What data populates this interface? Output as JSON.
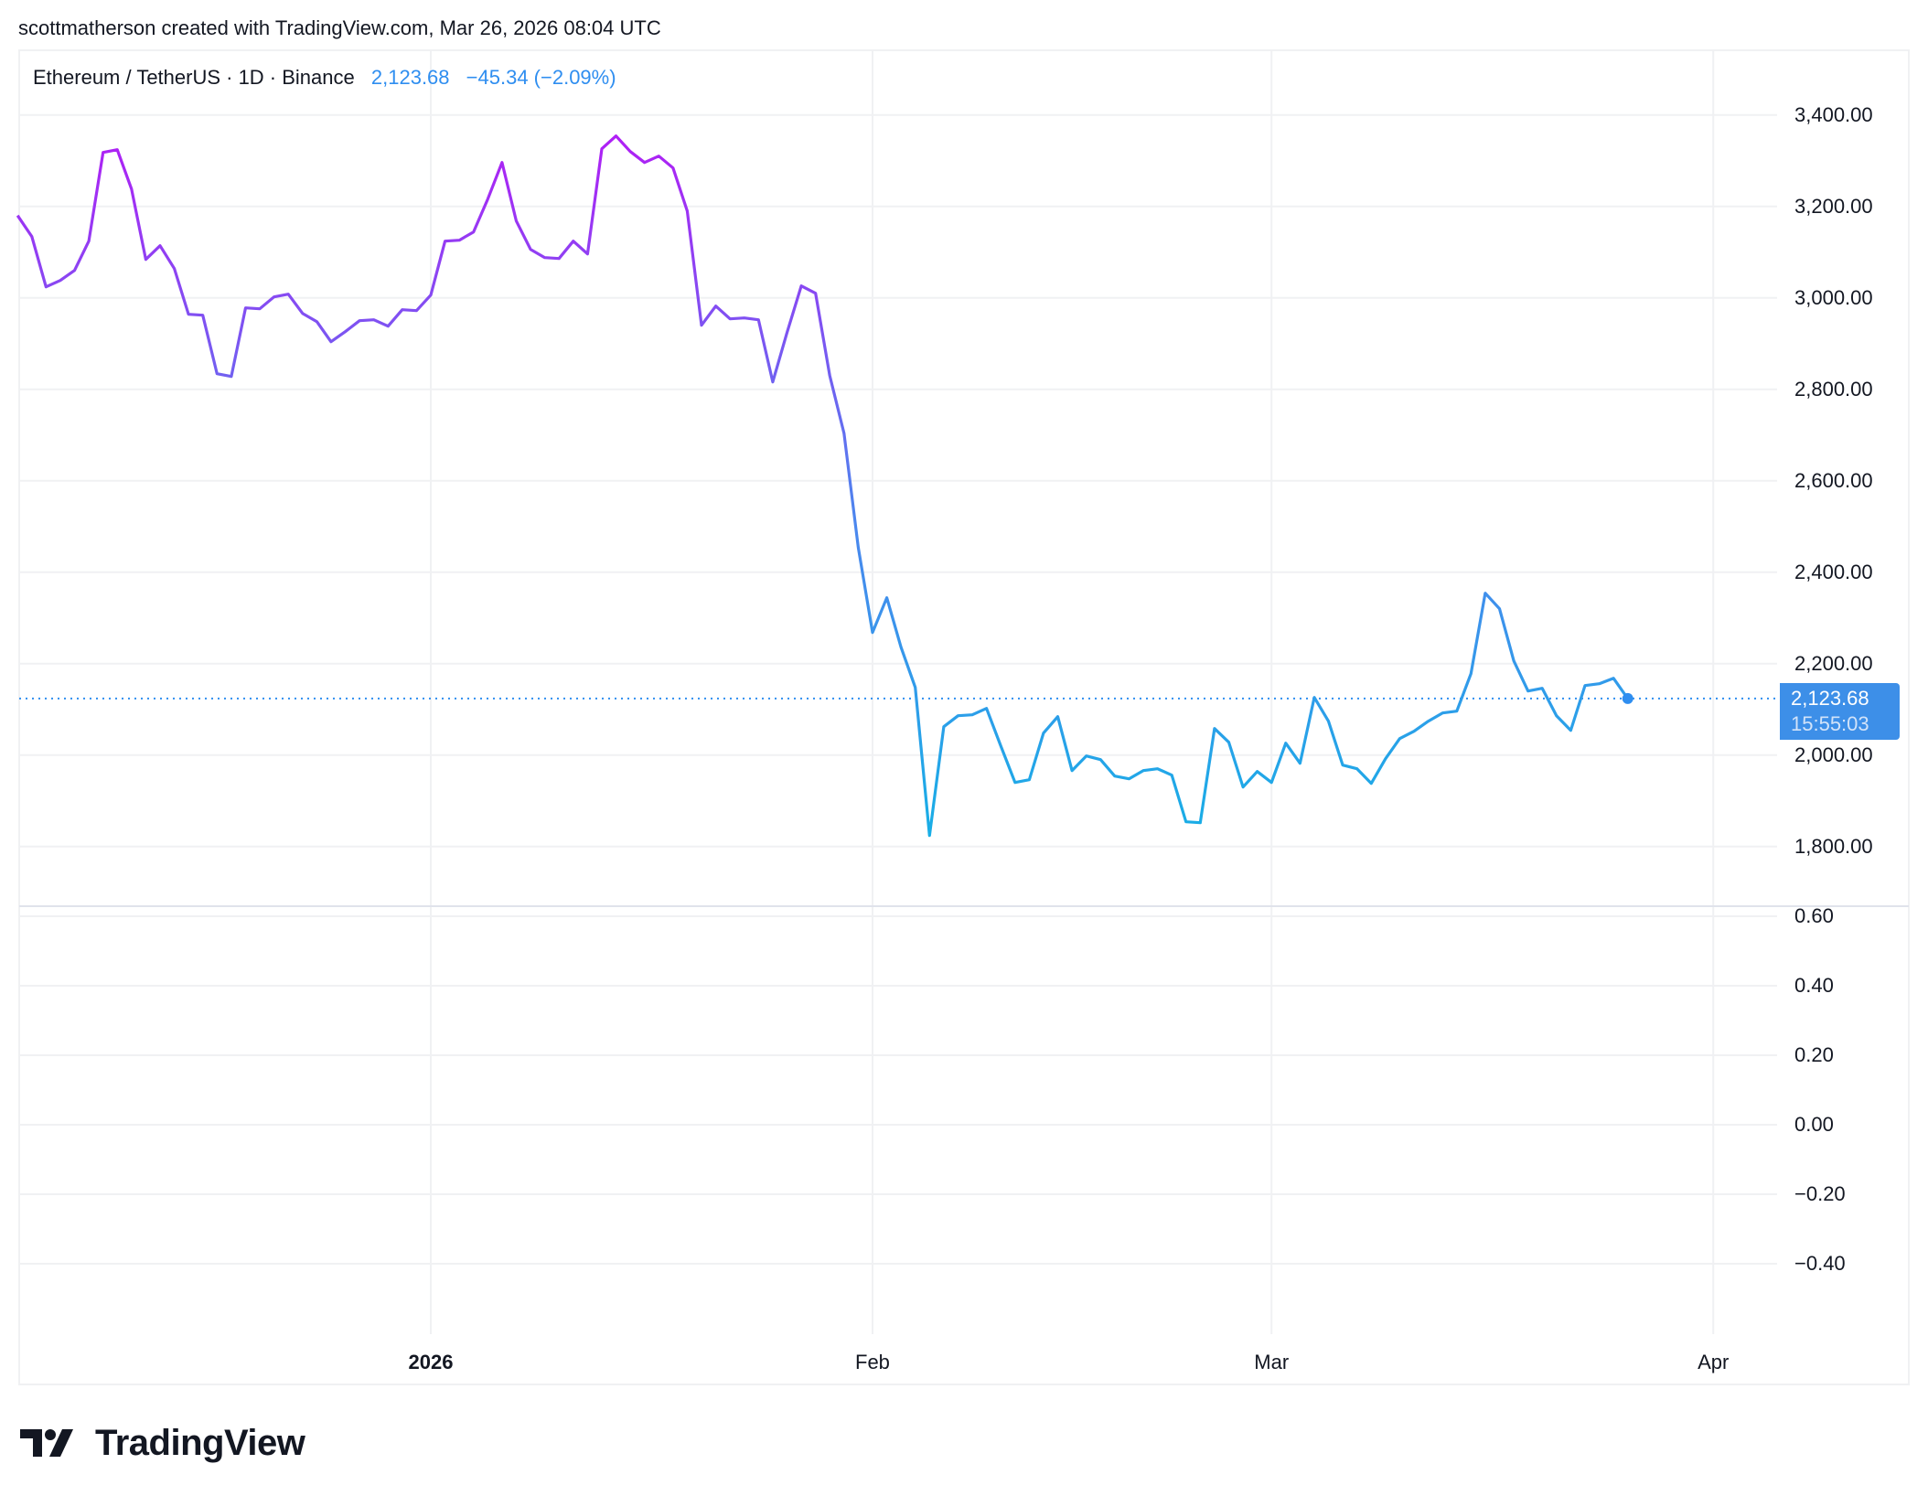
{
  "caption": "scottmatherson created with TradingView.com, Mar 26, 2026 08:04 UTC",
  "legend": {
    "symbol": "Ethereum / TetherUS · 1D · Binance",
    "last_price": "2,123.68",
    "change": "−45.34 (−2.09%)"
  },
  "price_tag": {
    "price": "2,123.68",
    "countdown": "15:55:03"
  },
  "logo": {
    "text": "TradingView",
    "icon": "tradingview-logo-icon"
  },
  "colors": {
    "line_top": "#b01ff5",
    "line_mid": "#4c86ee",
    "line_bottom": "#18aee6",
    "price_line": "#2f8ef0",
    "grid": "#f0f1f3",
    "accent": "#3d8fe8",
    "text": "#131722"
  },
  "chart_data": [
    {
      "type": "line",
      "title": "Ethereum / TetherUS · 1D · Binance",
      "xlabel": "",
      "ylabel": "",
      "x_start": "2025-12-03",
      "x_end": "2026-03-26",
      "x_ticks": [
        {
          "label": "2026",
          "date": "2026-01-01",
          "bold": true
        },
        {
          "label": "Feb",
          "date": "2026-02-01"
        },
        {
          "label": "Mar",
          "date": "2026-03-01"
        },
        {
          "label": "Apr",
          "date": "2026-04-01"
        }
      ],
      "y_ticks": [
        "3,400.00",
        "3,200.00",
        "3,000.00",
        "2,800.00",
        "2,600.00",
        "2,400.00",
        "2,200.00",
        "2,000.00",
        "1,800.00"
      ],
      "ylim": [
        1760,
        3430
      ],
      "grid": true,
      "last_value": 2123.68,
      "series": [
        {
          "name": "ETHUSDT close",
          "values": [
            3180,
            3134,
            3024,
            3038,
            3060,
            3124,
            3318,
            3324,
            3238,
            3084,
            3114,
            3064,
            2964,
            2962,
            2834,
            2828,
            2978,
            2976,
            3002,
            3008,
            2966,
            2948,
            2904,
            2926,
            2950,
            2952,
            2938,
            2974,
            2972,
            3006,
            3124,
            3126,
            3144,
            3216,
            3296,
            3168,
            3106,
            3088,
            3086,
            3124,
            3096,
            3326,
            3354,
            3320,
            3296,
            3310,
            3284,
            3190,
            2940,
            2982,
            2954,
            2956,
            2952,
            2816,
            2924,
            3026,
            3010,
            2830,
            2704,
            2454,
            2268,
            2344,
            2236,
            2148,
            1824,
            2062,
            2086,
            2088,
            2102,
            2020,
            1940,
            1946,
            2048,
            2084,
            1966,
            1998,
            1990,
            1954,
            1948,
            1966,
            1970,
            1956,
            1854,
            1852,
            2058,
            2028,
            1930,
            1964,
            1940,
            2026,
            1982,
            2126,
            2074,
            1978,
            1970,
            1938,
            1992,
            2036,
            2052,
            2074,
            2092,
            2096,
            2178,
            2354,
            2320,
            2206,
            2140,
            2146,
            2086,
            2054,
            2152,
            2156,
            2168,
            2123.68
          ]
        }
      ]
    },
    {
      "type": "line",
      "title": "indicator pane (empty)",
      "y_ticks": [
        "0.60",
        "0.40",
        "0.20",
        "0.00",
        "−0.20",
        "−0.40"
      ],
      "ylim": [
        -0.58,
        0.63
      ],
      "grid": true,
      "series": []
    }
  ]
}
